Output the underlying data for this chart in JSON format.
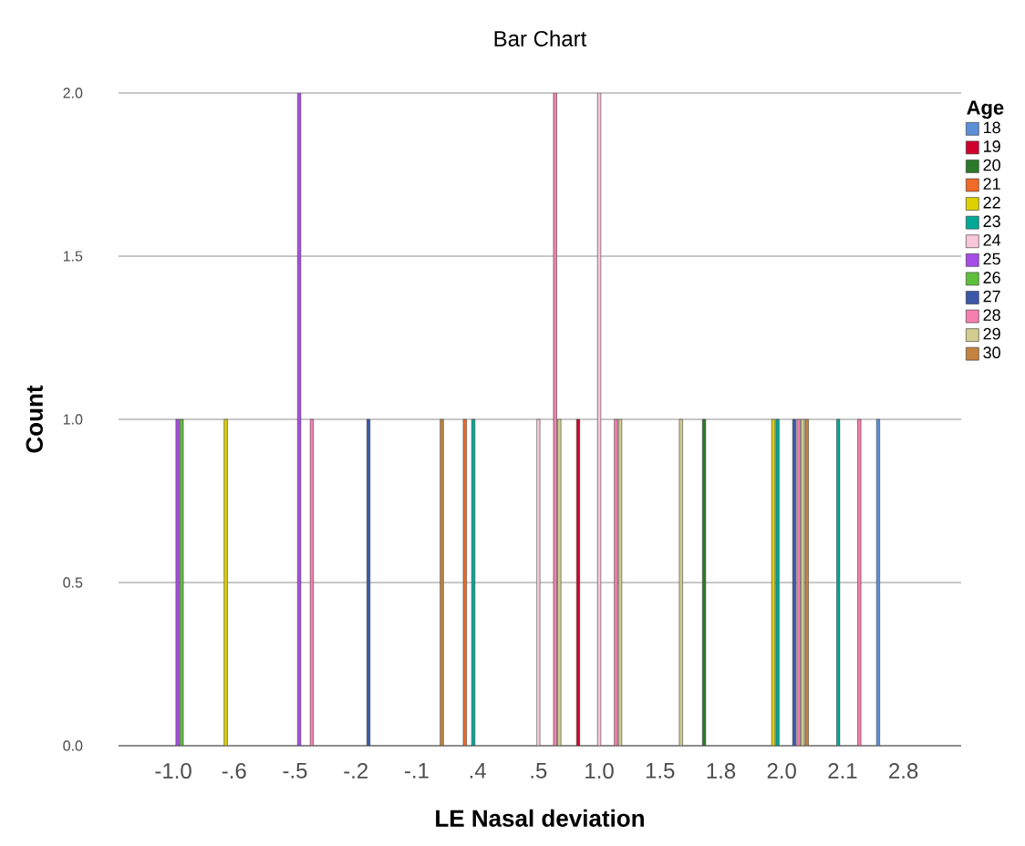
{
  "chart_data": {
    "type": "bar",
    "title": "Bar Chart",
    "xlabel": "LE Nasal deviation",
    "ylabel": "Count",
    "legend_title": "Age",
    "categories": [
      "-1.0",
      "-.6",
      "-.5",
      "-.2",
      "-.1",
      ".4",
      ".5",
      "1.0",
      "1.5",
      "1.8",
      "2.0",
      "2.1",
      "2.8"
    ],
    "series": [
      {
        "name": "18",
        "color": "#5b8fd8",
        "values": [
          null,
          null,
          null,
          null,
          null,
          null,
          null,
          null,
          null,
          null,
          null,
          null,
          1
        ]
      },
      {
        "name": "19",
        "color": "#d0002c",
        "values": [
          null,
          null,
          null,
          null,
          null,
          null,
          null,
          1,
          null,
          null,
          null,
          null,
          null
        ]
      },
      {
        "name": "20",
        "color": "#2a7a2a",
        "values": [
          null,
          null,
          null,
          null,
          null,
          null,
          null,
          null,
          null,
          1,
          null,
          null,
          null
        ]
      },
      {
        "name": "21",
        "color": "#f06a28",
        "values": [
          null,
          null,
          null,
          null,
          null,
          1,
          null,
          null,
          null,
          null,
          null,
          null,
          null
        ]
      },
      {
        "name": "22",
        "color": "#e0d000",
        "values": [
          null,
          1,
          null,
          null,
          null,
          null,
          null,
          null,
          null,
          null,
          1,
          null,
          null
        ]
      },
      {
        "name": "23",
        "color": "#00a896",
        "values": [
          null,
          null,
          null,
          null,
          null,
          1,
          null,
          null,
          null,
          null,
          1,
          1,
          null
        ]
      },
      {
        "name": "24",
        "color": "#f9c6dc",
        "values": [
          null,
          null,
          null,
          null,
          null,
          null,
          1,
          2,
          null,
          null,
          null,
          null,
          null
        ]
      },
      {
        "name": "25",
        "color": "#a64ce8",
        "values": [
          1,
          null,
          2,
          null,
          null,
          null,
          null,
          null,
          null,
          null,
          null,
          null,
          null
        ]
      },
      {
        "name": "26",
        "color": "#5dc03a",
        "values": [
          1,
          null,
          null,
          null,
          null,
          null,
          null,
          null,
          null,
          null,
          null,
          null,
          null
        ]
      },
      {
        "name": "27",
        "color": "#3c57a8",
        "values": [
          null,
          null,
          null,
          1,
          null,
          null,
          null,
          null,
          null,
          null,
          1,
          null,
          null
        ]
      },
      {
        "name": "28",
        "color": "#f77fb0",
        "values": [
          null,
          null,
          1,
          null,
          null,
          null,
          2,
          1,
          null,
          null,
          1,
          1,
          null
        ]
      },
      {
        "name": "29",
        "color": "#d2cd8e",
        "values": [
          null,
          null,
          null,
          null,
          null,
          null,
          1,
          1,
          1,
          null,
          1,
          null,
          null
        ]
      },
      {
        "name": "30",
        "color": "#c6823f",
        "values": [
          null,
          null,
          null,
          null,
          1,
          null,
          null,
          null,
          null,
          null,
          1,
          null,
          null
        ]
      }
    ],
    "ylim": [
      0,
      2
    ],
    "yticks": [
      {
        "value": 0,
        "label": "0.0"
      },
      {
        "value": 0.5,
        "label": "0.5"
      },
      {
        "value": 1,
        "label": "1.0"
      },
      {
        "value": 1.5,
        "label": "1.5"
      },
      {
        "value": 2,
        "label": "2.0"
      }
    ],
    "grid": "y",
    "legend": "right"
  }
}
